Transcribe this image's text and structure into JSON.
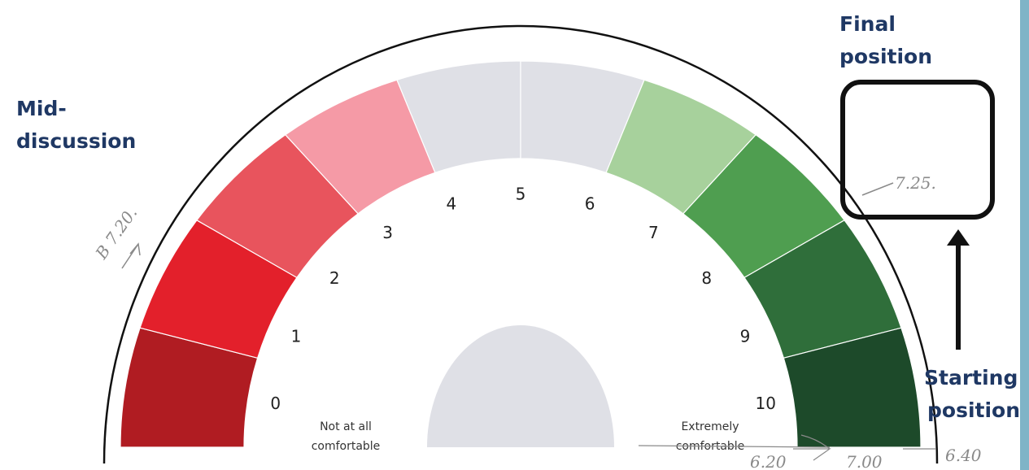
{
  "gauge": {
    "scale_labels": [
      "0",
      "1",
      "2",
      "3",
      "4",
      "5",
      "6",
      "7",
      "8",
      "9",
      "10"
    ],
    "low_label": [
      "Not at all",
      "comfortable"
    ],
    "high_label": [
      "Extremely",
      "comfortable"
    ]
  },
  "annotations": {
    "mid": [
      "Mid-",
      "discussion"
    ],
    "final": [
      "Final",
      "position"
    ],
    "start": [
      "Starting",
      "position"
    ]
  },
  "handwriting": {
    "mid_note": "B 7.20.",
    "final_note": "7.25.",
    "start_notes": [
      "6.20",
      "7.00",
      "6.40"
    ]
  }
}
